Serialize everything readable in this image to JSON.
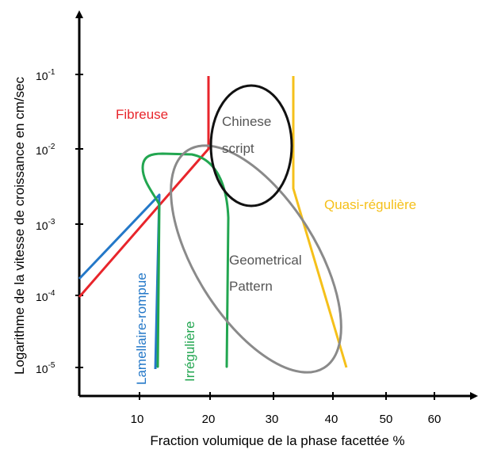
{
  "axes": {
    "xlabel": "Fraction volumique de la phase facettée %",
    "ylabel": "Logarithme de la vitesse de croissance en cm/sec",
    "x_ticks": [
      "10",
      "20",
      "30",
      "40",
      "50",
      "60"
    ],
    "y_ticks": [
      {
        "base": "10",
        "exp": "-1"
      },
      {
        "base": "10",
        "exp": "-2"
      },
      {
        "base": "10",
        "exp": "-3"
      },
      {
        "base": "10",
        "exp": "-4"
      },
      {
        "base": "10",
        "exp": "-5"
      }
    ]
  },
  "regions": {
    "fibreuse": {
      "label": "Fibreuse",
      "color": "#e8252b"
    },
    "lamellaire": {
      "label": "Lamellaire-rompue",
      "color": "#2478c8"
    },
    "irreguliere": {
      "label": "Irrégulière",
      "color": "#22a650"
    },
    "quasi": {
      "label": "Quasi-régulière",
      "color": "#f5c01a"
    },
    "chinese": {
      "label_line1": "Chinese",
      "label_line2": "script",
      "color": "#111111"
    },
    "geometrical": {
      "label_line1": "Geometrical",
      "label_line2": "Pattern",
      "color": "#8a8a8a"
    }
  },
  "colors": {
    "axis": "#000000",
    "label_text": "#555555"
  }
}
